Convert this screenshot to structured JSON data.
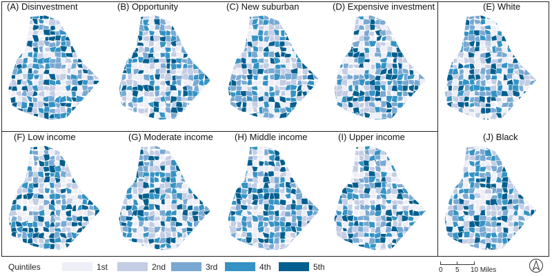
{
  "panels": [
    {
      "id": "A",
      "title": "(A) Disinvestment",
      "seed": 3
    },
    {
      "id": "B",
      "title": "(B) Opportunity",
      "seed": 11
    },
    {
      "id": "C",
      "title": "(C) New suburban",
      "seed": 23
    },
    {
      "id": "D",
      "title": "(D) Expensive investment",
      "seed": 37
    },
    {
      "id": "E",
      "title": "(E) White",
      "seed": 41
    },
    {
      "id": "F",
      "title": "(F) Low income",
      "seed": 53
    },
    {
      "id": "G",
      "title": "(G) Moderate income",
      "seed": 61
    },
    {
      "id": "H",
      "title": "(H) Middle income",
      "seed": 71
    },
    {
      "id": "I",
      "title": "(I) Upper income",
      "seed": 83
    },
    {
      "id": "J",
      "title": "(J) Black",
      "seed": 97
    }
  ],
  "legend": {
    "title": "Quintiles",
    "items": [
      {
        "label": "1st",
        "color": "#eeeef6"
      },
      {
        "label": "2nd",
        "color": "#c3cde4"
      },
      {
        "label": "3rd",
        "color": "#79a9d2"
      },
      {
        "label": "4th",
        "color": "#3493c4"
      },
      {
        "label": "5th",
        "color": "#035f8f"
      }
    ]
  },
  "scale_bar": {
    "label_0": "0",
    "label_5": "5",
    "label_10": "10 Miles"
  },
  "north_arrow": {
    "icon": "north-arrow-icon"
  }
}
